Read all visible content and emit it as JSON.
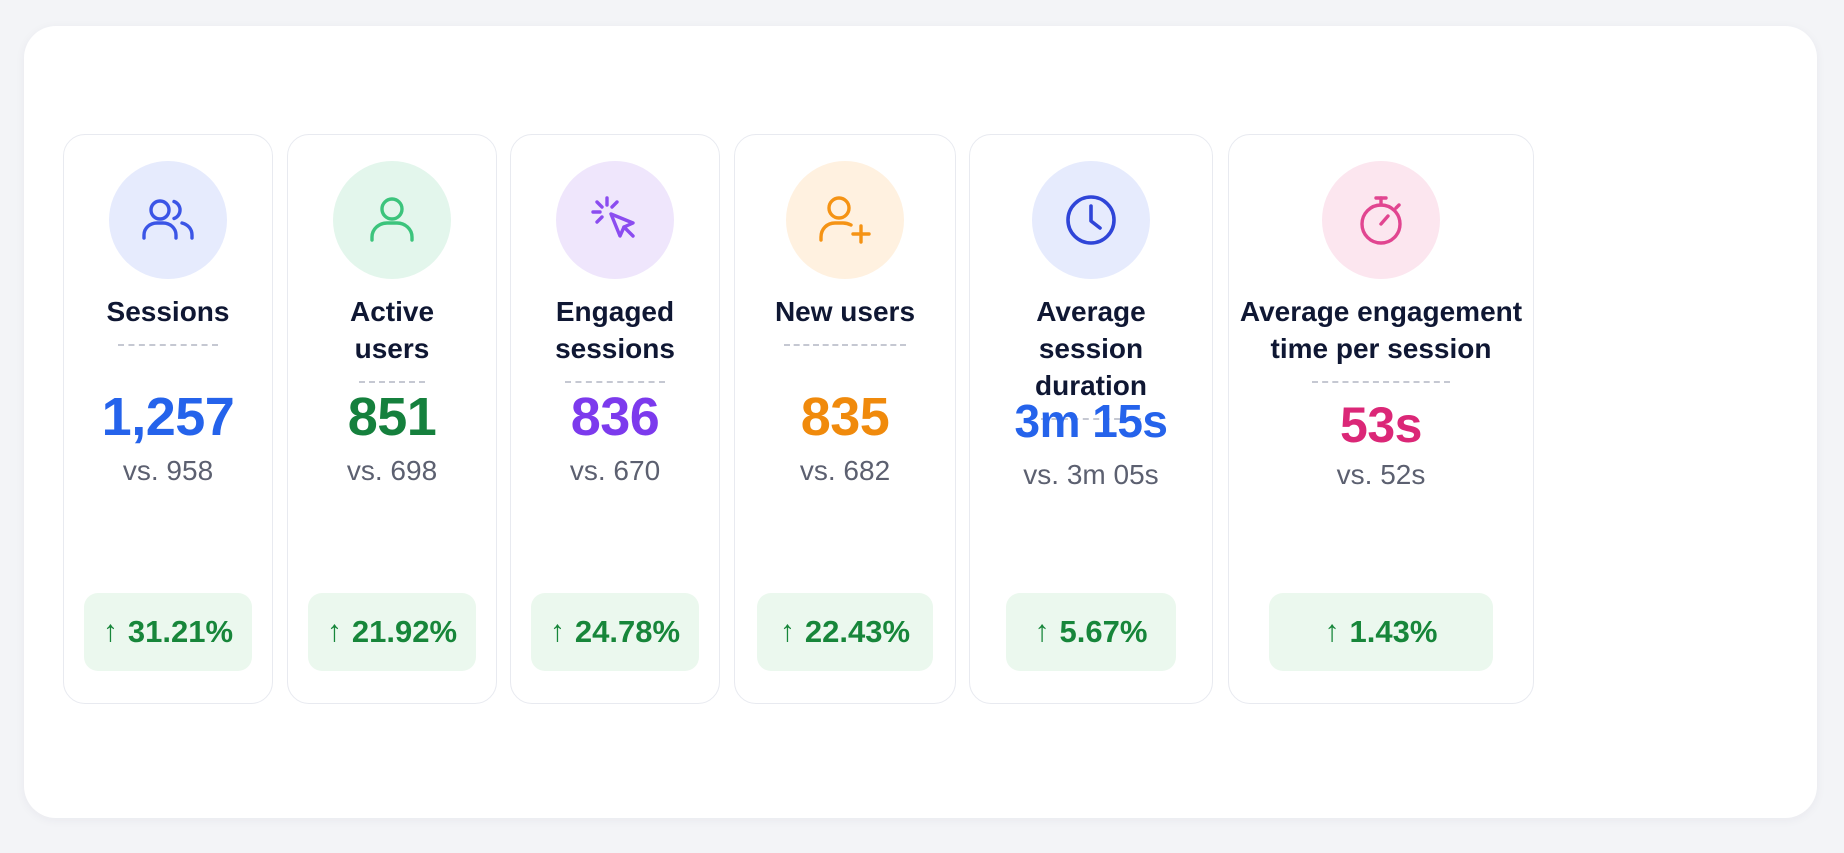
{
  "metrics": [
    {
      "label": "Sessions",
      "value": "1,257",
      "compare": "vs. 958",
      "change": "31.21%",
      "change_arrow": "↑",
      "icon": "users-icon",
      "value_color": "#2563eb",
      "icon_color": "#3b55e6",
      "icon_bg": "#e6ebfd"
    },
    {
      "label": "Active\nusers",
      "value": "851",
      "compare": "vs. 698",
      "change": "21.92%",
      "change_arrow": "↑",
      "icon": "user-icon",
      "value_color": "#15803d",
      "icon_color": "#3cc47c",
      "icon_bg": "#e3f6ec"
    },
    {
      "label": "Engaged\nsessions",
      "value": "836",
      "compare": "vs. 670",
      "change": "24.78%",
      "change_arrow": "↑",
      "icon": "cursor-click-icon",
      "value_color": "#7c3aed",
      "icon_color": "#8b4cf0",
      "icon_bg": "#efe6fc"
    },
    {
      "label": "New users",
      "value": "835",
      "compare": "vs. 682",
      "change": "22.43%",
      "change_arrow": "↑",
      "icon": "user-plus-icon",
      "value_color": "#f08a0c",
      "icon_color": "#f59314",
      "icon_bg": "#fff1e0"
    },
    {
      "label": "Average\nsession\nduration",
      "value": "3m 15s",
      "compare": "vs. 3m 05s",
      "change": "5.67%",
      "change_arrow": "↑",
      "icon": "clock-icon",
      "value_color": "#2563eb",
      "icon_color": "#2f45d8",
      "icon_bg": "#e6ebfd"
    },
    {
      "label": "Average engagement\ntime per session",
      "value": "53s",
      "compare": "vs. 52s",
      "change": "1.43%",
      "change_arrow": "↑",
      "icon": "stopwatch-icon",
      "value_color": "#db2777",
      "icon_color": "#e14590",
      "icon_bg": "#fce6ef"
    }
  ]
}
